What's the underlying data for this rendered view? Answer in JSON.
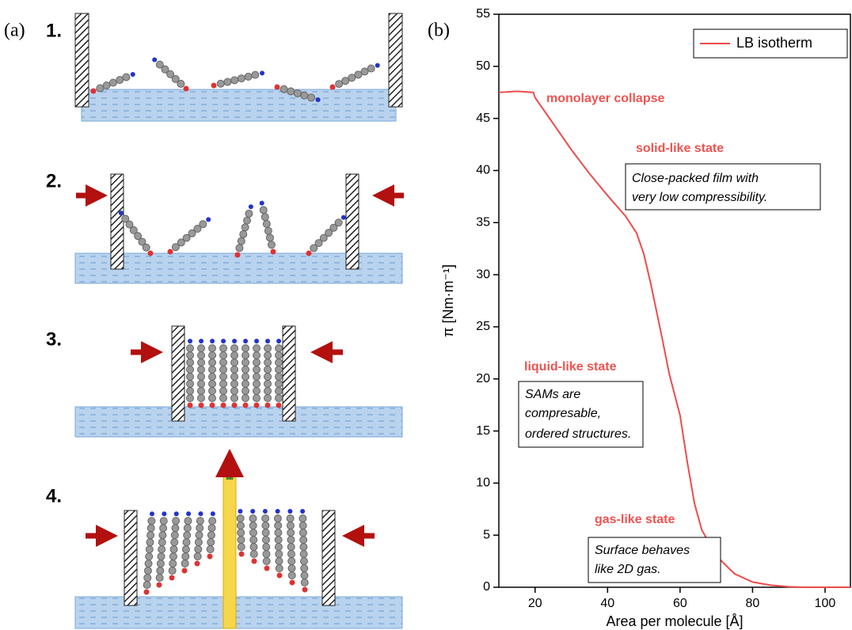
{
  "panel_labels": [
    "(a)",
    "(b)"
  ],
  "steps": [
    "1.",
    "2.",
    "3.",
    "4."
  ],
  "chart_data": {
    "type": "line",
    "x": [
      10,
      15,
      19.5,
      20,
      25,
      30,
      35,
      40,
      45,
      48,
      50,
      52,
      55,
      57,
      60,
      62,
      64,
      66,
      70,
      75,
      80,
      85,
      90,
      95,
      100,
      107
    ],
    "series": [
      {
        "name": "LB isotherm",
        "color": "#ef4b4b",
        "values": [
          47.5,
          47.6,
          47.5,
          47,
          44.5,
          42,
          39.7,
          37.6,
          35.6,
          34,
          32,
          29,
          24,
          20.5,
          16.5,
          12,
          8,
          5.5,
          3,
          1.3,
          0.5,
          0.2,
          0.05,
          0,
          0,
          0
        ]
      }
    ],
    "xlim": [
      10,
      107
    ],
    "ylim": [
      0,
      55
    ],
    "xticks": [
      20,
      40,
      60,
      80,
      100
    ],
    "yticks": [
      0,
      5,
      10,
      15,
      20,
      25,
      30,
      35,
      40,
      45,
      50,
      55
    ],
    "x_label": "Area per molecule [Å]",
    "y_label": "π [Nm·m⁻¹]",
    "legend": "top-right",
    "annotations": [
      {
        "title": "monolayer collapse"
      },
      {
        "title": "solid-like state",
        "box": [
          "Close-packed film with",
          "very low compressibility."
        ]
      },
      {
        "title": "liquid-like state",
        "box": [
          "SAMs are",
          "compresable,",
          "ordered structures."
        ]
      },
      {
        "title": "gas-like state",
        "box": [
          "Surface behaves",
          "like 2D gas."
        ]
      }
    ]
  }
}
